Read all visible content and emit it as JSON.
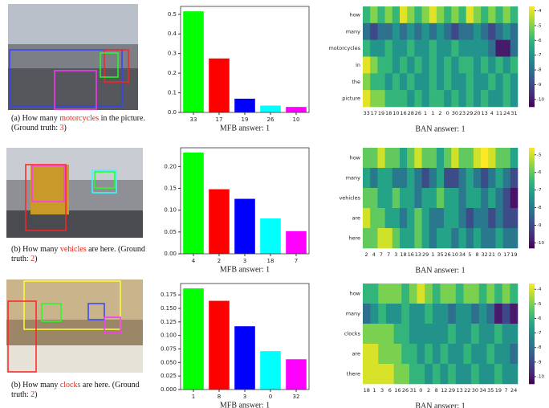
{
  "captions": [
    {
      "before": "(a)  How many ",
      "keyword": "motorcycles",
      "middle": " in the picture. (Ground truth: ",
      "truth": "3",
      "end": ")"
    },
    {
      "before": "(b) How many ",
      "keyword": "vehicles",
      "middle": " are here. (Ground truth: ",
      "truth": "2",
      "end": ")"
    },
    {
      "before": "(b) How many ",
      "keyword": "clocks",
      "middle": " are here. (Ground truth: ",
      "truth": "2",
      "end": ")"
    }
  ],
  "chart_data": [
    {
      "type": "bar",
      "xlabel": "MFB answer:  1",
      "categories": [
        "33",
        "17",
        "19",
        "26",
        "10"
      ],
      "values": [
        0.515,
        0.275,
        0.07,
        0.035,
        0.028
      ],
      "colors": [
        "#00ff00",
        "#ff0000",
        "#0000ff",
        "#00ffff",
        "#ff00ff"
      ],
      "ylim": [
        0,
        0.54
      ],
      "yticks": [
        {
          "value": 0,
          "label": "0.0"
        },
        0.1,
        0.2,
        0.3,
        0.4,
        0.5
      ]
    },
    {
      "type": "heatmap",
      "xlabel": "BAN answer: 1",
      "colormap": "viridis",
      "categories": [
        "33",
        "17",
        "19",
        "18",
        "10",
        "16",
        "28",
        "26",
        "1",
        "1",
        "2",
        "0",
        "30",
        "23",
        "29",
        "20",
        "13",
        "4",
        "11",
        "24",
        "31"
      ],
      "rows": [
        "how",
        "many",
        "motorcycles",
        "in",
        "the",
        "picture"
      ],
      "values": [
        [
          -6,
          -5,
          -6,
          -5,
          -6,
          -4,
          -5,
          -6,
          -5,
          -4,
          -5,
          -6,
          -5,
          -6,
          -4,
          -5,
          -6,
          -5,
          -6,
          -5,
          -6
        ],
        [
          -8,
          -9,
          -8,
          -8,
          -7,
          -8,
          -7,
          -8,
          -7,
          -8,
          -7,
          -8,
          -9,
          -8,
          -8,
          -7,
          -8,
          -9,
          -8,
          -7,
          -8
        ],
        [
          -6,
          -7,
          -7,
          -6,
          -7,
          -7,
          -6,
          -7,
          -7,
          -6,
          -7,
          -7,
          -6,
          -7,
          -7,
          -7,
          -7,
          -8,
          -10,
          -10,
          -8
        ],
        [
          -4,
          -5,
          -6,
          -6,
          -7,
          -6,
          -7,
          -6,
          -7,
          -6,
          -7,
          -6,
          -7,
          -6,
          -6,
          -7,
          -6,
          -7,
          -6,
          -7,
          -6
        ],
        [
          -5,
          -6,
          -6,
          -7,
          -6,
          -7,
          -6,
          -7,
          -7,
          -6,
          -7,
          -6,
          -7,
          -7,
          -6,
          -7,
          -7,
          -6,
          -7,
          -6,
          -7
        ],
        [
          -4,
          -5,
          -5,
          -6,
          -6,
          -6,
          -7,
          -6,
          -7,
          -6,
          -6,
          -7,
          -6,
          -7,
          -6,
          -7,
          -6,
          -7,
          -7,
          -6,
          -7
        ]
      ],
      "zlim": [
        -10.5,
        -3.7
      ],
      "zticks": [
        -4,
        -5,
        -6,
        -7,
        -8,
        -9,
        -10
      ]
    },
    {
      "type": "bar",
      "xlabel": "MFB answer:  1",
      "categories": [
        "4",
        "2",
        "3",
        "18",
        "7"
      ],
      "values": [
        0.232,
        0.148,
        0.126,
        0.081,
        0.052
      ],
      "colors": [
        "#00ff00",
        "#ff0000",
        "#0000ff",
        "#00ffff",
        "#ff00ff"
      ],
      "ylim": [
        0,
        0.243
      ],
      "yticks": [
        {
          "value": 0,
          "label": "0.00"
        },
        0.05,
        {
          "value": 0.1,
          "label": "0.10"
        },
        0.15,
        {
          "value": 0.2,
          "label": "0.20"
        }
      ]
    },
    {
      "type": "heatmap",
      "xlabel": "BAN answer: 1",
      "colormap": "viridis",
      "categories": [
        "2",
        "4",
        "7",
        "7",
        "3",
        "18",
        "16",
        "13",
        "29",
        "1",
        "35",
        "26",
        "10",
        "34",
        "5",
        "8",
        "32",
        "21",
        "0",
        "17",
        "19"
      ],
      "rows": [
        "how",
        "many",
        "vehicles",
        "are",
        "here"
      ],
      "values": [
        [
          -6,
          -6,
          -5,
          -6,
          -6,
          -7,
          -6,
          -5,
          -6,
          -6,
          -7,
          -6,
          -5,
          -6,
          -6,
          -5,
          -4,
          -5,
          -6,
          -6,
          -7
        ],
        [
          -7,
          -8,
          -7,
          -7,
          -8,
          -8,
          -7,
          -8,
          -9,
          -8,
          -7,
          -9,
          -9,
          -8,
          -7,
          -8,
          -9,
          -8,
          -7,
          -8,
          -9
        ],
        [
          -6,
          -6,
          -7,
          -7,
          -6,
          -7,
          -7,
          -8,
          -7,
          -7,
          -6,
          -7,
          -7,
          -8,
          -7,
          -7,
          -8,
          -7,
          -8,
          -9,
          -10
        ],
        [
          -5,
          -6,
          -6,
          -7,
          -7,
          -8,
          -7,
          -6,
          -7,
          -8,
          -8,
          -7,
          -7,
          -8,
          -9,
          -8,
          -8,
          -9,
          -8,
          -9,
          -9
        ],
        [
          -6,
          -6,
          -5,
          -5,
          -6,
          -7,
          -7,
          -6,
          -7,
          -8,
          -7,
          -7,
          -8,
          -7,
          -8,
          -7,
          -8,
          -8,
          -7,
          -8,
          -8
        ]
      ],
      "zlim": [
        -10.3,
        -4.6
      ],
      "zticks": [
        -5,
        -6,
        -7,
        -8,
        -9,
        -10
      ]
    },
    {
      "type": "bar",
      "xlabel": "MFB answer:  1",
      "categories": [
        "1",
        "8",
        "3",
        "0",
        "32"
      ],
      "values": [
        0.187,
        0.164,
        0.117,
        0.071,
        0.056
      ],
      "colors": [
        "#00ff00",
        "#ff0000",
        "#0000ff",
        "#00ffff",
        "#ff00ff"
      ],
      "ylim": [
        0,
        0.196
      ],
      "yticks": [
        {
          "value": 0,
          "label": "0.000"
        },
        0.025,
        {
          "value": 0.05,
          "label": "0.050"
        },
        0.075,
        {
          "value": 0.1,
          "label": "0.100"
        },
        0.125,
        {
          "value": 0.15,
          "label": "0.150"
        },
        0.175
      ]
    },
    {
      "type": "heatmap",
      "xlabel": "BAN answer: 1",
      "colormap": "viridis",
      "categories": [
        "18",
        "1",
        "3",
        "6",
        "16",
        "26",
        "31",
        "0",
        "2",
        "8",
        "12",
        "29",
        "13",
        "22",
        "30",
        "34",
        "35",
        "19",
        "7",
        "24"
      ],
      "rows": [
        "how",
        "many",
        "clocks",
        "are",
        "there"
      ],
      "values": [
        [
          -6,
          -6,
          -5,
          -5,
          -5,
          -6,
          -5,
          -4,
          -5,
          -6,
          -5,
          -5,
          -6,
          -5,
          -5,
          -6,
          -5,
          -6,
          -5,
          -6
        ],
        [
          -8,
          -7,
          -6,
          -7,
          -7,
          -6,
          -7,
          -7,
          -6,
          -7,
          -7,
          -8,
          -7,
          -7,
          -8,
          -7,
          -8,
          -10,
          -9,
          -10
        ],
        [
          -5,
          -5,
          -5,
          -5,
          -6,
          -6,
          -7,
          -7,
          -7,
          -7,
          -7,
          -6,
          -7,
          -7,
          -6,
          -7,
          -7,
          -6,
          -7,
          -7
        ],
        [
          -4,
          -4,
          -5,
          -5,
          -5,
          -6,
          -6,
          -7,
          -6,
          -7,
          -6,
          -7,
          -7,
          -6,
          -7,
          -7,
          -6,
          -7,
          -7,
          -8
        ],
        [
          -4,
          -4,
          -4,
          -4,
          -5,
          -5,
          -6,
          -6,
          -7,
          -6,
          -7,
          -6,
          -7,
          -7,
          -6,
          -7,
          -7,
          -6,
          -7,
          -7
        ]
      ],
      "zlim": [
        -10.5,
        -3.6
      ],
      "zticks": [
        -4,
        -5,
        -6,
        -7,
        -8,
        -9,
        -10
      ]
    }
  ]
}
